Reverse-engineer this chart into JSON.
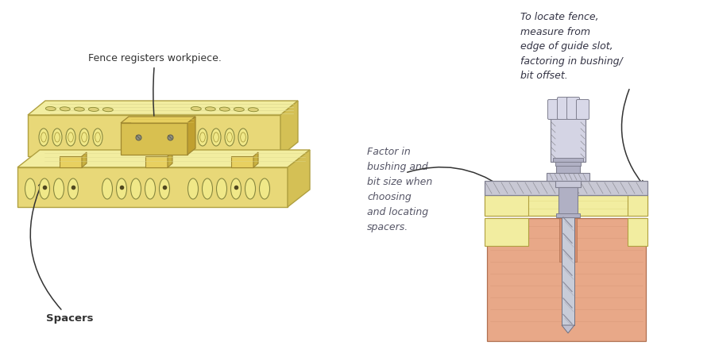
{
  "bg_color": "#ffffff",
  "wood_light": "#f2eda0",
  "wood_medium": "#e8d878",
  "wood_shadow": "#d4c055",
  "wood_outline": "#b0a040",
  "fence_top": "#e8d060",
  "fence_front": "#d8c050",
  "slot_face": "#c8b840",
  "slot_outline": "#807020",
  "spacer_color": "#e8d060",
  "metal_light": "#c8c8d8",
  "metal_mid": "#b0b0c4",
  "metal_dark": "#808090",
  "hatch_color": "#909098",
  "workpiece_color": "#e8a888",
  "workpiece_outline": "#b07050",
  "workpiece_grain": "#d09070",
  "text_color": "#333333",
  "italic_color": "#555566",
  "arrow_color": "#333333",
  "label1": "Fence registers workpiece.",
  "label2": "Spacers",
  "label3": "Factor in\nbushing and\nbit size when\nchoosing\nand locating\nspacers.",
  "label4": "To locate fence,\nmeasure from\nedge of guide slot,\nfactoring in bushing/\nbit offset."
}
